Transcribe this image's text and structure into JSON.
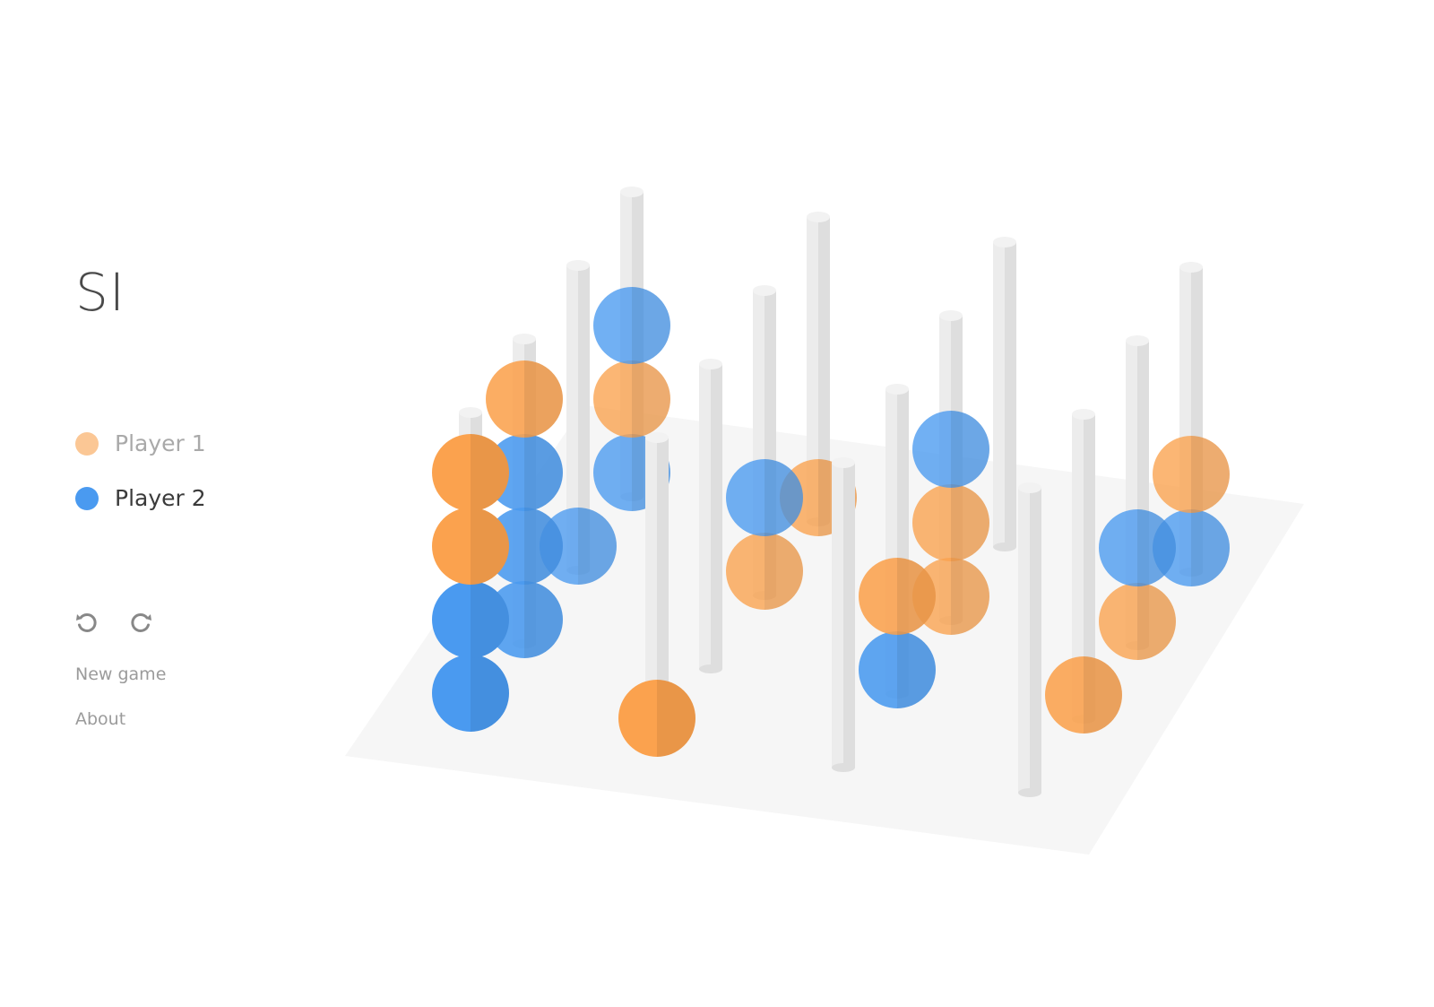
{
  "app": {
    "title": "SI"
  },
  "players": [
    {
      "label": "Player 1",
      "color": "#fbc795",
      "active": false
    },
    {
      "label": "Player 2",
      "color": "#4a9af0",
      "active": true
    }
  ],
  "controls": {
    "undo_icon": "undo-icon",
    "redo_icon": "redo-icon",
    "new_game_label": "New game",
    "about_label": "About"
  },
  "colors": {
    "player1": "#fba24e",
    "player2": "#4a9af0",
    "peg": "#e6e6e6",
    "board": "#f6f6f6"
  },
  "board": {
    "size": 4,
    "pegs": [
      {
        "row": 0,
        "col": 0,
        "pieces": [
          2,
          2,
          1,
          1
        ]
      },
      {
        "row": 0,
        "col": 1,
        "pieces": [
          1
        ]
      },
      {
        "row": 0,
        "col": 2,
        "pieces": []
      },
      {
        "row": 0,
        "col": 3,
        "pieces": []
      },
      {
        "row": 1,
        "col": 0,
        "pieces": [
          2,
          2,
          2,
          1
        ]
      },
      {
        "row": 1,
        "col": 1,
        "pieces": []
      },
      {
        "row": 1,
        "col": 2,
        "pieces": [
          2,
          1
        ]
      },
      {
        "row": 1,
        "col": 3,
        "pieces": [
          1
        ]
      },
      {
        "row": 2,
        "col": 0,
        "pieces": [
          2
        ]
      },
      {
        "row": 2,
        "col": 1,
        "pieces": [
          1,
          2
        ]
      },
      {
        "row": 2,
        "col": 2,
        "pieces": [
          1,
          1,
          2
        ]
      },
      {
        "row": 2,
        "col": 3,
        "pieces": [
          1,
          2
        ]
      },
      {
        "row": 3,
        "col": 0,
        "pieces": [
          2,
          1,
          2
        ]
      },
      {
        "row": 3,
        "col": 1,
        "pieces": [
          1
        ]
      },
      {
        "row": 3,
        "col": 2,
        "pieces": []
      },
      {
        "row": 3,
        "col": 3,
        "pieces": [
          2,
          1
        ]
      }
    ]
  }
}
